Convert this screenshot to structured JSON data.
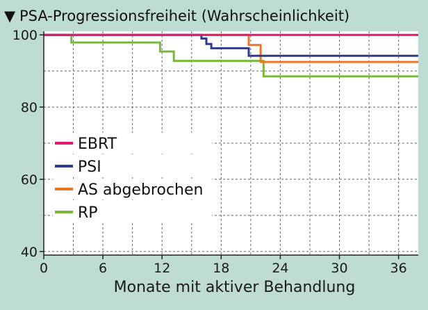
{
  "chart_data": {
    "type": "line",
    "title": "PSA-Progressionsfreiheit (Wahrscheinlichkeit)",
    "title_marker": "▼",
    "xlabel": "Monate mit aktiver Behandlung",
    "ylabel": "",
    "xlim": [
      0,
      38
    ],
    "ylim": [
      39,
      101
    ],
    "xticks": [
      0,
      6,
      12,
      18,
      24,
      30,
      36
    ],
    "yticks": [
      40,
      60,
      80,
      100
    ],
    "grid": "dashed",
    "legend_position": "left",
    "series": [
      {
        "name": "EBRT",
        "color": "#e0186c",
        "x": [
          0,
          38
        ],
        "y": [
          100,
          100
        ]
      },
      {
        "name": "PSI",
        "color": "#2e3a8c",
        "x": [
          0,
          16,
          16,
          16.5,
          16.5,
          17,
          17,
          20.8,
          20.8,
          38
        ],
        "y": [
          100,
          100,
          99,
          99,
          97.5,
          97.5,
          96.3,
          96.3,
          94.2,
          94.2
        ]
      },
      {
        "name": "AS abgebrochen",
        "color": "#f07428",
        "x": [
          0,
          20.8,
          20.8,
          22,
          22,
          38
        ],
        "y": [
          100,
          100,
          97.2,
          97.2,
          92.5,
          92.5
        ]
      },
      {
        "name": "RP",
        "color": "#7ab83a",
        "x": [
          0,
          2.8,
          2.8,
          11.8,
          11.8,
          13.2,
          13.2,
          22.3,
          22.3,
          38
        ],
        "y": [
          100,
          100,
          97.9,
          97.9,
          95.4,
          95.4,
          92.8,
          92.8,
          88.5,
          88.5
        ]
      }
    ]
  }
}
